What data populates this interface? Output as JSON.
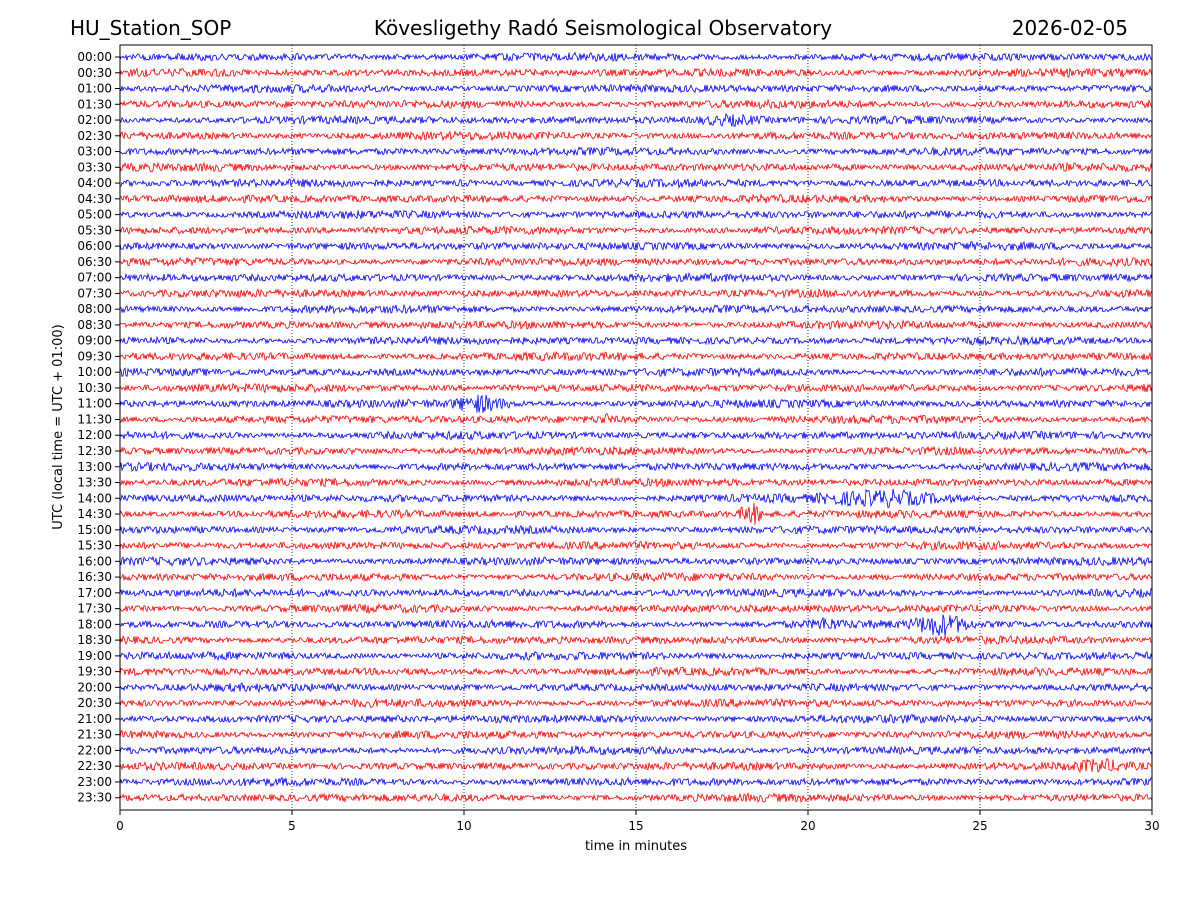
{
  "header": {
    "station": "HU_Station_SOP",
    "observatory": "Kövesligethy Radó Seismological Observatory",
    "date": "2026-02-05"
  },
  "chart_data": {
    "type": "line",
    "title": "Kövesligethy Radó Seismological Observatory",
    "xlabel": "time in minutes",
    "ylabel": "UTC (local time = UTC + 01:00)",
    "xlim": [
      0,
      30
    ],
    "x_ticks": [
      0,
      5,
      10,
      15,
      20,
      25,
      30
    ],
    "x_tick_labels": [
      "0",
      "5",
      "10",
      "15",
      "20",
      "25",
      "30"
    ],
    "grid": "vertical dotted at x ticks",
    "series_colors": [
      "#0000ff",
      "#ff0000"
    ],
    "rows": [
      "00:00",
      "00:30",
      "01:00",
      "01:30",
      "02:00",
      "02:30",
      "03:00",
      "03:30",
      "04:00",
      "04:30",
      "05:00",
      "05:30",
      "06:00",
      "06:30",
      "07:00",
      "07:30",
      "08:00",
      "08:30",
      "09:00",
      "09:30",
      "10:00",
      "10:30",
      "11:00",
      "11:30",
      "12:00",
      "12:30",
      "13:00",
      "13:30",
      "14:00",
      "14:30",
      "15:00",
      "15:30",
      "16:00",
      "16:30",
      "17:00",
      "17:30",
      "18:00",
      "18:30",
      "19:00",
      "19:30",
      "20:00",
      "20:30",
      "21:00",
      "21:30",
      "22:00",
      "22:30",
      "23:00",
      "23:30"
    ],
    "events": [
      {
        "row": "02:00",
        "start_min": 16.5,
        "end_min": 19.0,
        "amplitude": 1.8
      },
      {
        "row": "04:00",
        "start_min": 9.5,
        "end_min": 10.5,
        "amplitude": 1.4
      },
      {
        "row": "11:00",
        "start_min": 9.5,
        "end_min": 11.5,
        "amplitude": 2.2
      },
      {
        "row": "11:30",
        "start_min": 13.8,
        "end_min": 14.4,
        "amplitude": 1.6
      },
      {
        "row": "14:00",
        "start_min": 20.0,
        "end_min": 25.0,
        "amplitude": 2.3
      },
      {
        "row": "14:30",
        "start_min": 17.9,
        "end_min": 18.8,
        "amplitude": 3.0
      },
      {
        "row": "18:00",
        "start_min": 20.0,
        "end_min": 21.0,
        "amplitude": 1.6
      },
      {
        "row": "18:00",
        "start_min": 22.8,
        "end_min": 25.0,
        "amplitude": 2.6
      },
      {
        "row": "22:30",
        "start_min": 27.5,
        "end_min": 29.5,
        "amplitude": 1.6
      }
    ]
  }
}
